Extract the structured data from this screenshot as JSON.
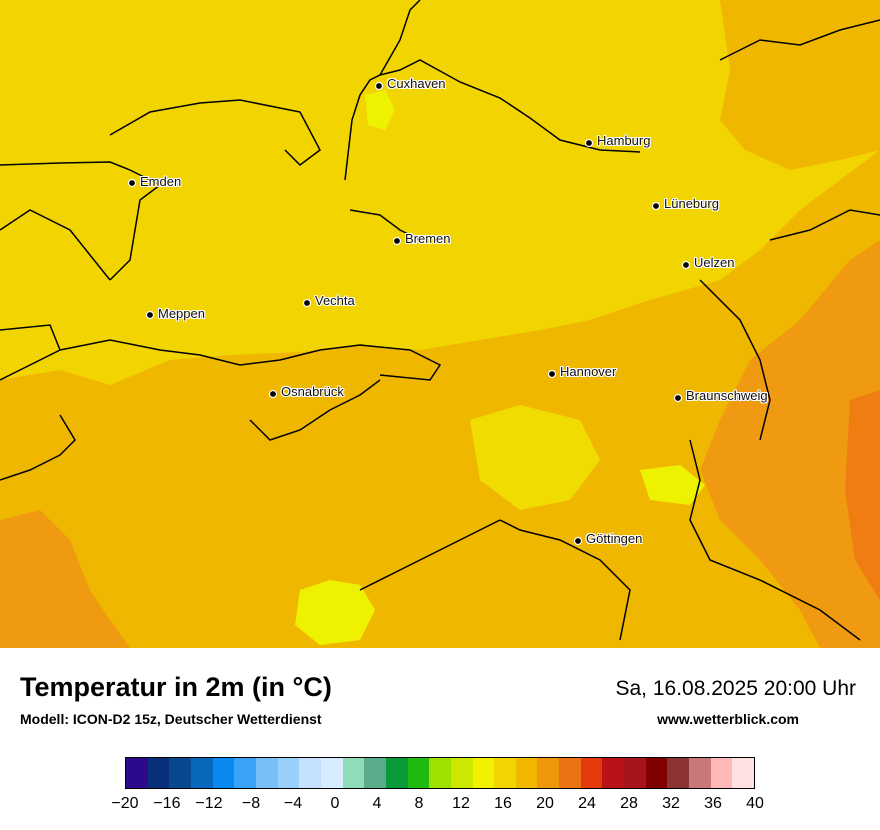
{
  "map": {
    "cities": [
      {
        "name": "Cuxhaven"
      },
      {
        "name": "Hamburg"
      },
      {
        "name": "Emden"
      },
      {
        "name": "Lüneburg"
      },
      {
        "name": "Bremen"
      },
      {
        "name": "Uelzen"
      },
      {
        "name": "Vechta"
      },
      {
        "name": "Meppen"
      },
      {
        "name": "Hannover"
      },
      {
        "name": "Osnabrück"
      },
      {
        "name": "Braunschweig"
      },
      {
        "name": "Göttingen"
      }
    ]
  },
  "footer": {
    "title": "Temperatur in 2m (in °C)",
    "model": "Modell: ICON-D2 15z, Deutscher Wetterdienst",
    "datetime": "Sa, 16.08.2025 20:00 Uhr",
    "website": "www.wetterblick.com"
  },
  "legend": {
    "colors": [
      "#2d0a8c",
      "#08307a",
      "#07488f",
      "#0868bc",
      "#0a8af0",
      "#3aa2f7",
      "#78bef7",
      "#98d0fb",
      "#c4e2ff",
      "#d8ecff",
      "#8fdcb8",
      "#5aad8a",
      "#0a9a3a",
      "#20bb10",
      "#9ee000",
      "#cce800",
      "#f0f000",
      "#f2d400",
      "#f0b800",
      "#f0960c",
      "#ec7312",
      "#e43a0c",
      "#b81418",
      "#a8141c",
      "#800000",
      "#8c3434",
      "#c87878",
      "#ffb8b8",
      "#ffe0e0"
    ],
    "ticks": [
      "−20",
      "−16",
      "−12",
      "−8",
      "−4",
      "0",
      "4",
      "8",
      "12",
      "16",
      "20",
      "24",
      "28",
      "32",
      "36",
      "40"
    ]
  }
}
